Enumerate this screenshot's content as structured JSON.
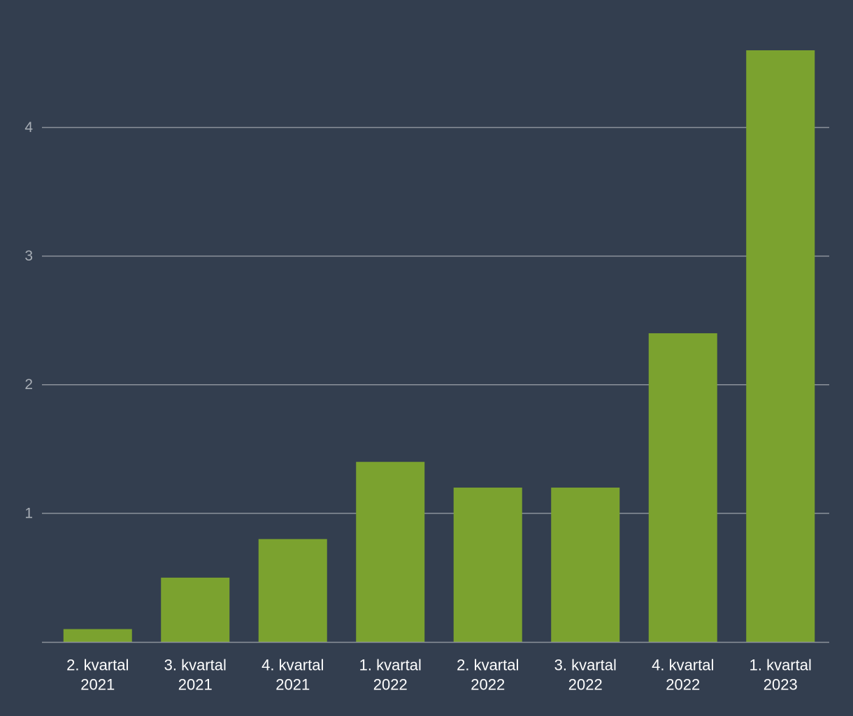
{
  "colors": {
    "background": "#333e4f",
    "bar": "#7ba22f",
    "grid": "#8c929b",
    "tick_label": "#a7adb5",
    "category_label": "#ffffff"
  },
  "chart_data": {
    "type": "bar",
    "title": "",
    "xlabel": "",
    "ylabel": "",
    "categories": [
      [
        "2. kvartal",
        "2021"
      ],
      [
        "3. kvartal",
        "2021"
      ],
      [
        "4. kvartal",
        "2021"
      ],
      [
        "1. kvartal",
        "2022"
      ],
      [
        "2. kvartal",
        "2022"
      ],
      [
        "3. kvartal",
        "2022"
      ],
      [
        "4. kvartal",
        "2022"
      ],
      [
        "1. kvartal",
        "2023"
      ]
    ],
    "values": [
      0.1,
      0.5,
      0.8,
      1.4,
      1.2,
      1.2,
      2.4,
      4.6
    ],
    "ylim": [
      0,
      4.6
    ],
    "yticks": [
      1,
      2,
      3,
      4
    ],
    "ytick_labels": [
      "1",
      "2",
      "3",
      "4"
    ],
    "grid": true,
    "legend": false
  }
}
